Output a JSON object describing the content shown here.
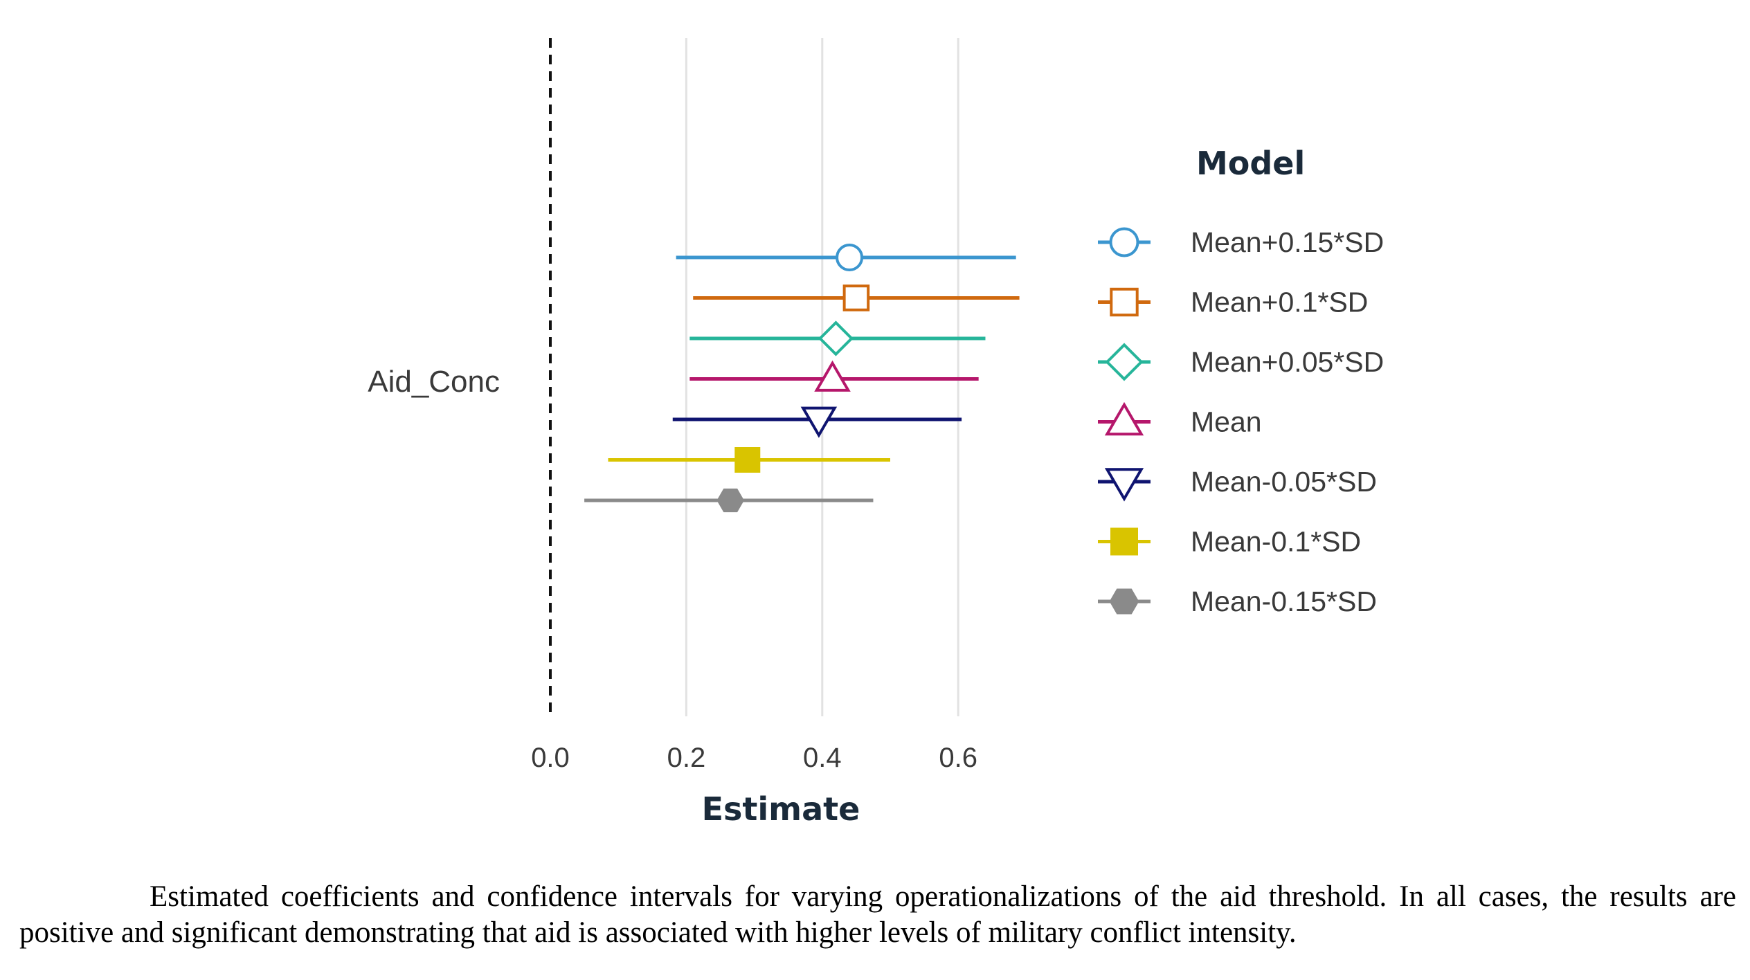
{
  "chart_data": {
    "type": "coefficient_plot",
    "xlabel": "Estimate",
    "ylabel": "",
    "xlim": [
      0.0,
      0.7
    ],
    "xticks": [
      "0.0",
      "0.2",
      "0.4",
      "0.6"
    ],
    "reference_line": 0.0,
    "reference_line_style": "dashed",
    "grid": "vertical",
    "categories": [
      "Aid_Conc"
    ],
    "legend_title": "Model",
    "legend_position": "right",
    "series": [
      {
        "name": "Mean+0.15*SD",
        "estimate": 0.44,
        "ci": [
          0.185,
          0.685
        ],
        "color": "#3b96cf",
        "marker": "circle-open"
      },
      {
        "name": "Mean+0.1*SD",
        "estimate": 0.45,
        "ci": [
          0.21,
          0.69
        ],
        "color": "#d0690e",
        "marker": "square-open"
      },
      {
        "name": "Mean+0.05*SD",
        "estimate": 0.42,
        "ci": [
          0.205,
          0.64
        ],
        "color": "#26b59a",
        "marker": "diamond-open"
      },
      {
        "name": "Mean",
        "estimate": 0.415,
        "ci": [
          0.205,
          0.63
        ],
        "color": "#b5176b",
        "marker": "triangle-up-open"
      },
      {
        "name": "Mean-0.05*SD",
        "estimate": 0.395,
        "ci": [
          0.18,
          0.605
        ],
        "color": "#0f1470",
        "marker": "triangle-down-open"
      },
      {
        "name": "Mean-0.1*SD",
        "estimate": 0.29,
        "ci": [
          0.085,
          0.5
        ],
        "color": "#d9c400",
        "marker": "square-filled"
      },
      {
        "name": "Mean-0.15*SD",
        "estimate": 0.265,
        "ci": [
          0.05,
          0.475
        ],
        "color": "#8a8a8a",
        "marker": "hexagon-filled"
      }
    ]
  },
  "caption": "Estimated coefficients and confidence intervals for varying operationalizations of the aid threshold. In all cases, the results are positive and significant demonstrating that aid is associated with higher levels of military conflict intensity."
}
